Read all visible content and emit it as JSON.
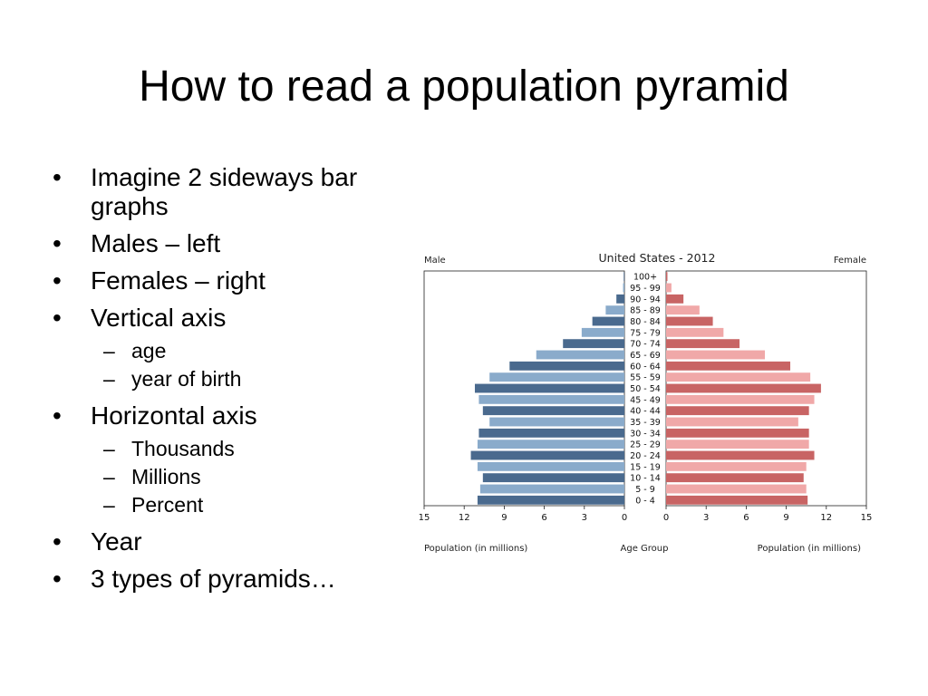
{
  "slide": {
    "title": "How to read a population pyramid",
    "bullets": [
      {
        "text": "Imagine 2 sideways bar graphs",
        "level": 1
      },
      {
        "text": "Males – left",
        "level": 1
      },
      {
        "text": "Females – right",
        "level": 1
      },
      {
        "text": "Vertical axis",
        "level": 1
      },
      {
        "text": "age",
        "level": 2
      },
      {
        "text": "year of birth",
        "level": 2
      },
      {
        "text": "Horizontal axis",
        "level": 1
      },
      {
        "text": "Thousands",
        "level": 2
      },
      {
        "text": "Millions",
        "level": 2
      },
      {
        "text": "Percent",
        "level": 2
      },
      {
        "text": "Year",
        "level": 1
      },
      {
        "text": "3 types of pyramids…",
        "level": 1
      }
    ]
  },
  "chart_data": {
    "type": "bar",
    "orientation": "horizontal-pyramid",
    "title": "United States - 2012",
    "left_label": "Male",
    "right_label": "Female",
    "xlabel_left": "Population (in millions)",
    "xlabel_center": "Age Group",
    "xlabel_right": "Population (in millions)",
    "xlim": [
      0,
      15
    ],
    "ticks": [
      15,
      12,
      9,
      6,
      3,
      0
    ],
    "categories": [
      "100+",
      "95 - 99",
      "90 - 94",
      "85 - 89",
      "80 - 84",
      "75 - 79",
      "70 - 74",
      "65 - 69",
      "60 - 64",
      "55 - 59",
      "50 - 54",
      "45 - 49",
      "40 - 44",
      "35 - 39",
      "30 - 34",
      "25 - 29",
      "20 - 24",
      "15 - 19",
      "10 - 14",
      "5 - 9",
      "0 - 4"
    ],
    "series": [
      {
        "name": "Male",
        "values": [
          0.05,
          0.1,
          0.6,
          1.4,
          2.4,
          3.2,
          4.6,
          6.6,
          8.6,
          10.1,
          11.2,
          10.9,
          10.6,
          10.1,
          10.9,
          11.0,
          11.5,
          11.0,
          10.6,
          10.8,
          11.0
        ]
      },
      {
        "name": "Female",
        "values": [
          0.1,
          0.4,
          1.3,
          2.5,
          3.5,
          4.3,
          5.5,
          7.4,
          9.3,
          10.8,
          11.6,
          11.1,
          10.7,
          9.9,
          10.7,
          10.7,
          11.1,
          10.5,
          10.3,
          10.5,
          10.6
        ]
      }
    ],
    "colors": {
      "male_dark": "#4a6a8e",
      "male_light": "#8aabcb",
      "female_dark": "#c86464",
      "female_light": "#f0a8a8"
    }
  }
}
